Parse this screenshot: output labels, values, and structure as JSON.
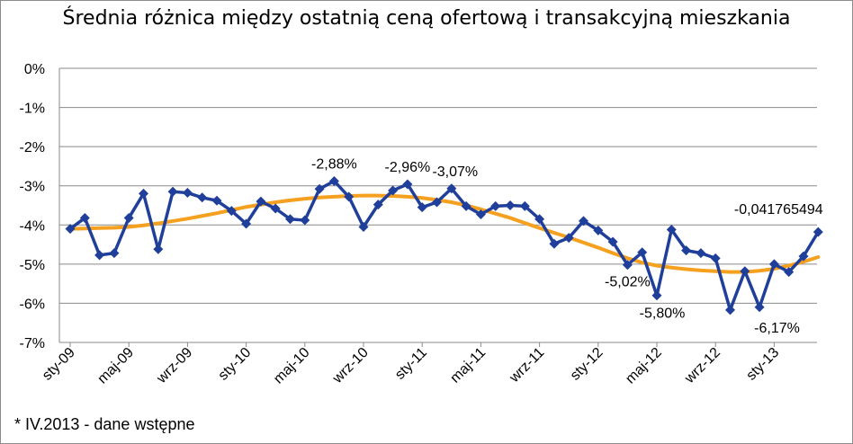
{
  "chart_data": {
    "type": "line",
    "title": "Średnia różnica między ostatnią ceną ofertową i transakcyjną mieszkania",
    "footnote": "* IV.2013 - dane wstępne",
    "ylim": [
      -7,
      0
    ],
    "y_ticks": [
      0,
      -1,
      -2,
      -3,
      -4,
      -5,
      -6,
      -7
    ],
    "y_tick_labels": [
      "0%",
      "-1%",
      "-2%",
      "-3%",
      "-4%",
      "-5%",
      "-6%",
      "-7%"
    ],
    "x_tick_labels": [
      "sty-09",
      "maj-09",
      "wrz-09",
      "sty-10",
      "maj-10",
      "wrz-10",
      "sty-11",
      "maj-11",
      "wrz-11",
      "sty-12",
      "maj-12",
      "wrz-12",
      "sty-13"
    ],
    "grid": true,
    "series": [
      {
        "color": "#1f3f9a",
        "marker": "diamond",
        "values": [
          -4.1,
          -3.82,
          -4.77,
          -4.72,
          -3.82,
          -3.2,
          -4.62,
          -3.15,
          -3.18,
          -3.3,
          -3.38,
          -3.64,
          -3.97,
          -3.4,
          -3.58,
          -3.85,
          -3.88,
          -3.08,
          -2.88,
          -3.28,
          -4.05,
          -3.48,
          -3.12,
          -2.96,
          -3.55,
          -3.42,
          -3.07,
          -3.52,
          -3.73,
          -3.52,
          -3.5,
          -3.52,
          -3.85,
          -4.48,
          -4.33,
          -3.9,
          -4.14,
          -4.43,
          -5.02,
          -4.7,
          -5.8,
          -4.12,
          -4.65,
          -4.72,
          -4.85,
          -6.17,
          -5.18,
          -6.1,
          -5.0,
          -5.2,
          -4.8,
          -4.18
        ]
      },
      {
        "color": "#f5a01e",
        "marker": "none",
        "values": [
          -4.1,
          -4.09,
          -4.08,
          -4.07,
          -4.05,
          -4.01,
          -3.96,
          -3.9,
          -3.84,
          -3.77,
          -3.7,
          -3.62,
          -3.54,
          -3.48,
          -3.42,
          -3.37,
          -3.33,
          -3.3,
          -3.28,
          -3.26,
          -3.25,
          -3.25,
          -3.26,
          -3.28,
          -3.31,
          -3.36,
          -3.42,
          -3.5,
          -3.6,
          -3.71,
          -3.82,
          -3.95,
          -4.08,
          -4.2,
          -4.32,
          -4.45,
          -4.58,
          -4.72,
          -4.85,
          -4.96,
          -5.04,
          -5.09,
          -5.13,
          -5.16,
          -5.18,
          -5.2,
          -5.2,
          -5.17,
          -5.12,
          -5.04,
          -4.94,
          -4.82
        ]
      }
    ],
    "data_labels": [
      {
        "index": 18,
        "text": "-2,88%"
      },
      {
        "index": 23,
        "text": "-2,96%"
      },
      {
        "index": 26,
        "text": "-3,07%"
      },
      {
        "index": 38,
        "text": "-5,02%"
      },
      {
        "index": 40,
        "text": "-5,80%"
      },
      {
        "index": 45,
        "text": "-6,17%"
      },
      {
        "index": 51,
        "text": "-0,041765494"
      }
    ]
  }
}
